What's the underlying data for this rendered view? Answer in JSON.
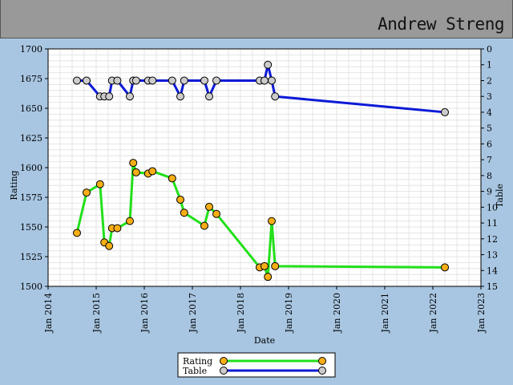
{
  "header": {
    "player_name": "Andrew Streng"
  },
  "chart_data": {
    "type": "line",
    "xlabel": "Date",
    "ylabel": "Rating",
    "y2label": "Table",
    "xlim": [
      2014.0,
      2023.0
    ],
    "ylim": [
      1500,
      1700
    ],
    "y2lim": [
      0,
      15
    ],
    "y2_inverted": true,
    "x_tick_labels": [
      "Jan 2014",
      "Jan 2015",
      "Jan 2016",
      "Jan 2017",
      "Jan 2018",
      "Jan 2019",
      "Jan 2020",
      "Jan 2021",
      "Jan 2022",
      "Jan 2023"
    ],
    "y_tick_labels": [
      "1500",
      "1525",
      "1550",
      "1575",
      "1600",
      "1625",
      "1650",
      "1675",
      "1700"
    ],
    "y2_tick_labels": [
      "0",
      "1",
      "2",
      "3",
      "4",
      "5",
      "6",
      "7",
      "8",
      "9",
      "10",
      "11",
      "12",
      "13",
      "14",
      "15"
    ],
    "grid": true,
    "legend_position": "bottom-center",
    "series": [
      {
        "name": "Rating",
        "axis": "left",
        "line_color": "#22e01a",
        "marker_color": "#f7ae16",
        "x": [
          2014.6,
          2014.8,
          2015.08,
          2015.17,
          2015.27,
          2015.33,
          2015.44,
          2015.7,
          2015.77,
          2015.83,
          2016.08,
          2016.17,
          2016.58,
          2016.75,
          2016.83,
          2017.25,
          2017.35,
          2017.5,
          2018.4,
          2018.5,
          2018.57,
          2018.65,
          2018.72,
          2022.25
        ],
        "y": [
          1545,
          1579,
          1586,
          1537,
          1534,
          1549,
          1549,
          1555,
          1604,
          1596,
          1595,
          1597,
          1591,
          1573,
          1562,
          1551,
          1567,
          1561,
          1516,
          1517,
          1508,
          1555,
          1517,
          1516
        ],
        "segments": [
          0,
          1,
          2,
          3,
          4,
          5,
          6,
          7,
          8,
          9,
          10,
          11,
          12,
          13,
          14,
          15,
          16,
          17,
          18,
          19,
          20,
          21,
          22
        ]
      },
      {
        "name": "Table",
        "axis": "right",
        "line_color": "#0c1ad6",
        "marker_color": "#cccccc",
        "x": [
          2014.6,
          2014.8,
          2015.08,
          2015.17,
          2015.27,
          2015.33,
          2015.44,
          2015.7,
          2015.77,
          2015.83,
          2016.08,
          2016.17,
          2016.58,
          2016.75,
          2016.83,
          2017.25,
          2017.35,
          2017.5,
          2018.4,
          2018.5,
          2018.57,
          2018.65,
          2018.72,
          2022.25
        ],
        "y": [
          2,
          2,
          3,
          3,
          3,
          2,
          2,
          3,
          2,
          2,
          2,
          2,
          2,
          3,
          2,
          2,
          3,
          2,
          2,
          2,
          1,
          2,
          3,
          4
        ]
      }
    ]
  }
}
